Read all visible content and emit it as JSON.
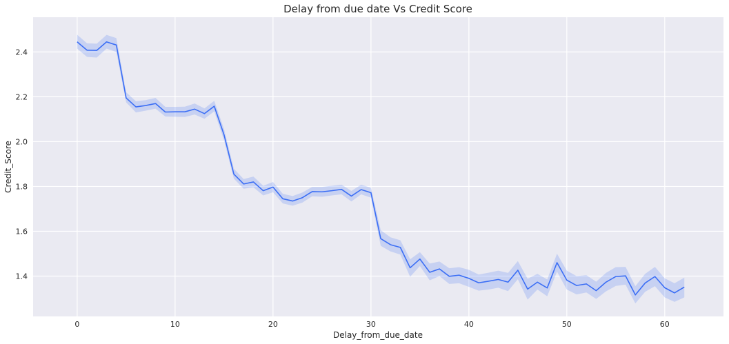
{
  "chart_data": {
    "type": "line",
    "title": "Delay from due date Vs Credit Score",
    "xlabel": "Delay_from_due_date",
    "ylabel": "Credit_Score",
    "xlim": [
      -4.5,
      66
    ],
    "ylim": [
      1.22,
      2.555
    ],
    "xticks": [
      0,
      10,
      20,
      30,
      40,
      50,
      60
    ],
    "yticks": [
      1.4,
      1.6,
      1.8,
      2.0,
      2.2,
      2.4
    ],
    "xtick_labels": [
      "0",
      "10",
      "20",
      "30",
      "40",
      "50",
      "60"
    ],
    "ytick_labels": [
      "1.4",
      "1.6",
      "1.8",
      "2.0",
      "2.2",
      "2.4"
    ],
    "grid": true,
    "legend": "none",
    "colors": {
      "background": "#eaeaf2",
      "grid": "#ffffff",
      "line": "#3b6ef5",
      "band": "#3b6ef5"
    },
    "series": [
      {
        "x": [
          0,
          1,
          2,
          3,
          4,
          5,
          6,
          7,
          8,
          9,
          10,
          11,
          12,
          13,
          14,
          15,
          16,
          17,
          18,
          19,
          20,
          21,
          22,
          23,
          24,
          25,
          26,
          27,
          28,
          29,
          30,
          31,
          32,
          33,
          34,
          35,
          36,
          37,
          38,
          39,
          40,
          41,
          42,
          43,
          44,
          45,
          46,
          47,
          48,
          49,
          50,
          51,
          52,
          53,
          54,
          55,
          56,
          57,
          58,
          59,
          60,
          61,
          62
        ],
        "y": [
          2.445,
          2.408,
          2.407,
          2.445,
          2.431,
          2.195,
          2.155,
          2.161,
          2.17,
          2.132,
          2.133,
          2.133,
          2.145,
          2.125,
          2.158,
          2.03,
          1.855,
          1.811,
          1.82,
          1.781,
          1.797,
          1.745,
          1.735,
          1.75,
          1.777,
          1.776,
          1.781,
          1.787,
          1.757,
          1.786,
          1.772,
          1.567,
          1.54,
          1.528,
          1.437,
          1.476,
          1.417,
          1.432,
          1.399,
          1.404,
          1.39,
          1.37,
          1.377,
          1.385,
          1.373,
          1.426,
          1.342,
          1.373,
          1.347,
          1.46,
          1.382,
          1.358,
          1.365,
          1.335,
          1.373,
          1.398,
          1.401,
          1.316,
          1.369,
          1.398,
          1.348,
          1.325,
          1.351
        ],
        "ci_low": [
          2.415,
          2.378,
          2.375,
          2.415,
          2.4,
          2.175,
          2.13,
          2.138,
          2.147,
          2.112,
          2.111,
          2.11,
          2.121,
          2.102,
          2.135,
          2.005,
          1.835,
          1.79,
          1.796,
          1.76,
          1.774,
          1.724,
          1.714,
          1.728,
          1.756,
          1.754,
          1.76,
          1.765,
          1.733,
          1.765,
          1.75,
          1.535,
          1.51,
          1.496,
          1.397,
          1.445,
          1.381,
          1.4,
          1.365,
          1.368,
          1.352,
          1.335,
          1.34,
          1.348,
          1.333,
          1.386,
          1.295,
          1.34,
          1.31,
          1.42,
          1.34,
          1.318,
          1.327,
          1.298,
          1.332,
          1.356,
          1.362,
          1.278,
          1.33,
          1.355,
          1.305,
          1.285,
          1.305
        ],
        "ci_high": [
          2.477,
          2.439,
          2.437,
          2.476,
          2.462,
          2.22,
          2.18,
          2.185,
          2.195,
          2.155,
          2.155,
          2.156,
          2.17,
          2.148,
          2.182,
          2.055,
          1.879,
          1.833,
          1.844,
          1.803,
          1.82,
          1.767,
          1.757,
          1.773,
          1.798,
          1.798,
          1.803,
          1.808,
          1.78,
          1.808,
          1.794,
          1.605,
          1.573,
          1.56,
          1.475,
          1.507,
          1.456,
          1.465,
          1.435,
          1.44,
          1.428,
          1.407,
          1.415,
          1.424,
          1.414,
          1.467,
          1.388,
          1.41,
          1.385,
          1.5,
          1.424,
          1.4,
          1.404,
          1.375,
          1.414,
          1.44,
          1.441,
          1.355,
          1.41,
          1.441,
          1.39,
          1.368,
          1.393
        ]
      }
    ]
  }
}
